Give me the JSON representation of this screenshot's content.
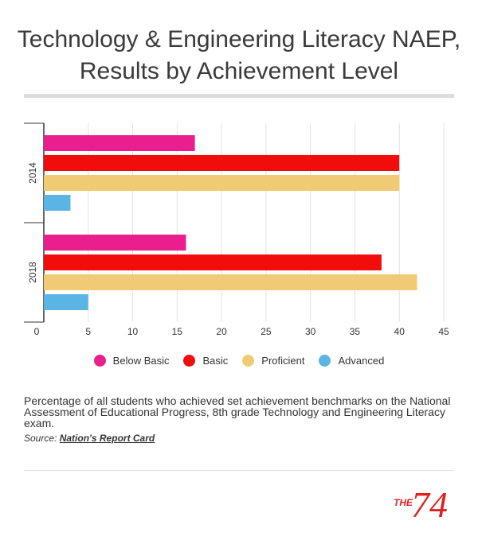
{
  "header": {
    "title_line1": "Technology & Engineering Literacy NAEP,",
    "title_line2": "Results by Achievement Level"
  },
  "chart_data": {
    "type": "bar",
    "orientation": "horizontal",
    "categories": [
      "2014",
      "2018"
    ],
    "series": [
      {
        "name": "Below Basic",
        "values": [
          17,
          16
        ],
        "color": "#ea1e8c"
      },
      {
        "name": "Basic",
        "values": [
          40,
          38
        ],
        "color": "#f20d0d"
      },
      {
        "name": "Proficient",
        "values": [
          40,
          42
        ],
        "color": "#f0cb73"
      },
      {
        "name": "Advanced",
        "values": [
          3,
          5
        ],
        "color": "#5ab5e5"
      }
    ],
    "xlim": [
      0,
      45
    ],
    "xticks": [
      "0",
      "5",
      "10",
      "15",
      "20",
      "25",
      "30",
      "35",
      "40",
      "45"
    ],
    "grid": true,
    "legend_position": "bottom"
  },
  "caption": "Percentage of all students who achieved set achievement benchmarks on the National Assessment of Educational Progress, 8th grade Technology and Engineering Literacy exam.",
  "source": {
    "label": "Source:",
    "link_text": "Nation's Report Card"
  },
  "logo": {
    "text_small": "THE",
    "text_large": "74",
    "color": "#e0201f"
  }
}
